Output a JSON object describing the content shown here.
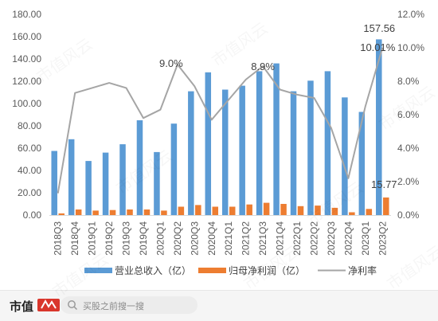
{
  "chart_data": {
    "type": "bar",
    "categories": [
      "2018Q3",
      "2018Q4",
      "2019Q1",
      "2019Q2",
      "2019Q3",
      "2019Q4",
      "2020Q1",
      "2020Q2",
      "2020Q3",
      "2020Q4",
      "2021Q1",
      "2021Q2",
      "2021Q3",
      "2021Q4",
      "2022Q1",
      "2022Q2",
      "2022Q3",
      "2022Q4",
      "2023Q1",
      "2023Q2"
    ],
    "series": [
      {
        "name": "营业总收入（亿）",
        "type": "bar",
        "axis": "left",
        "color": "#5b9bd5",
        "values": [
          57.5,
          68,
          48.5,
          56,
          63.5,
          85,
          56.5,
          82,
          111,
          128,
          112.5,
          116,
          129,
          136,
          111,
          120.5,
          129,
          105.5,
          92.5,
          157.56
        ]
      },
      {
        "name": "归母净利润（亿）",
        "type": "bar",
        "axis": "left",
        "color": "#ed7d31",
        "values": [
          1.5,
          5,
          4,
          4.5,
          5,
          5,
          4,
          7.5,
          9,
          7.5,
          7.5,
          9.5,
          11,
          10,
          8,
          8.5,
          6.5,
          2.5,
          5.5,
          15.77
        ]
      },
      {
        "name": "净利率",
        "type": "line",
        "axis": "right",
        "color": "#a5a5a5",
        "values": [
          1.3,
          7.3,
          7.6,
          7.9,
          7.6,
          5.8,
          6.3,
          9.0,
          7.7,
          5.7,
          6.9,
          8.1,
          8.9,
          7.5,
          7.2,
          7.0,
          5.2,
          2.2,
          6.5,
          10.01
        ]
      }
    ],
    "y_left": {
      "min": 0,
      "max": 180,
      "step": 20,
      "tick_labels": [
        "0.00",
        "20.00",
        "40.00",
        "60.00",
        "80.00",
        "100.00",
        "120.00",
        "140.00",
        "160.00",
        "180.00"
      ]
    },
    "y_right": {
      "min": 0,
      "max": 12,
      "step": 2,
      "tick_labels": [
        "0.0%",
        "2.0%",
        "4.0%",
        "6.0%",
        "8.0%",
        "10.0%",
        "12.0%"
      ]
    },
    "annotations": [
      {
        "text": "9.0%",
        "category": "2020Q2"
      },
      {
        "text": "8.9%",
        "category": "2021Q3"
      },
      {
        "text": "157.56",
        "category": "2023Q2"
      },
      {
        "text": "10.01%",
        "category": "2023Q2"
      },
      {
        "text": "15.77",
        "category": "2023Q2"
      }
    ],
    "legend_position": "bottom",
    "grid": false
  },
  "footer": {
    "brand": "市值",
    "search_placeholder": "买股之前搜一搜"
  },
  "watermark_text": "市值风云",
  "colors": {
    "footer_bg": "#f5f5f5",
    "axis_text": "#595959"
  }
}
